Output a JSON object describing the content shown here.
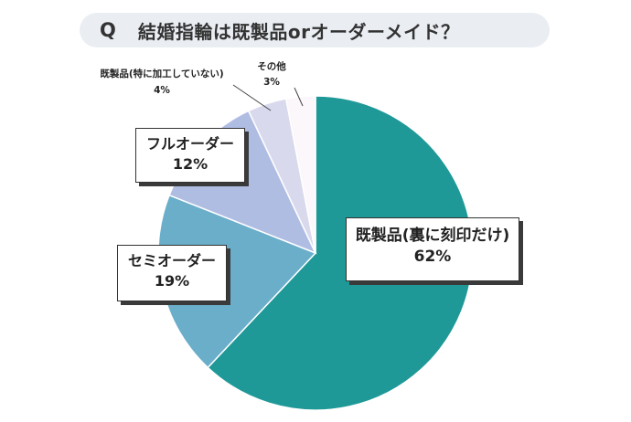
{
  "title": {
    "q": "Q",
    "text": "結婚指輪は既製品orオーダーメイド？"
  },
  "colors": {
    "title_bg": "#eaeef3",
    "slices": [
      "#1f9898",
      "#6aaeca",
      "#b0bde3",
      "#d9d9ee",
      "#fbf7fa"
    ]
  },
  "chart_data": {
    "type": "pie",
    "title": "結婚指輪は既製品orオーダーメイド？",
    "start": "12 o'clock, clockwise",
    "categories": [
      "既製品(裏に刻印だけ)",
      "セミオーダー",
      "フルオーダー",
      "既製品(特に加工していない)",
      "その他"
    ],
    "values": [
      62,
      19,
      12,
      4,
      3
    ],
    "value_labels": [
      "62%",
      "19%",
      "12%",
      "4%",
      "3%"
    ]
  }
}
